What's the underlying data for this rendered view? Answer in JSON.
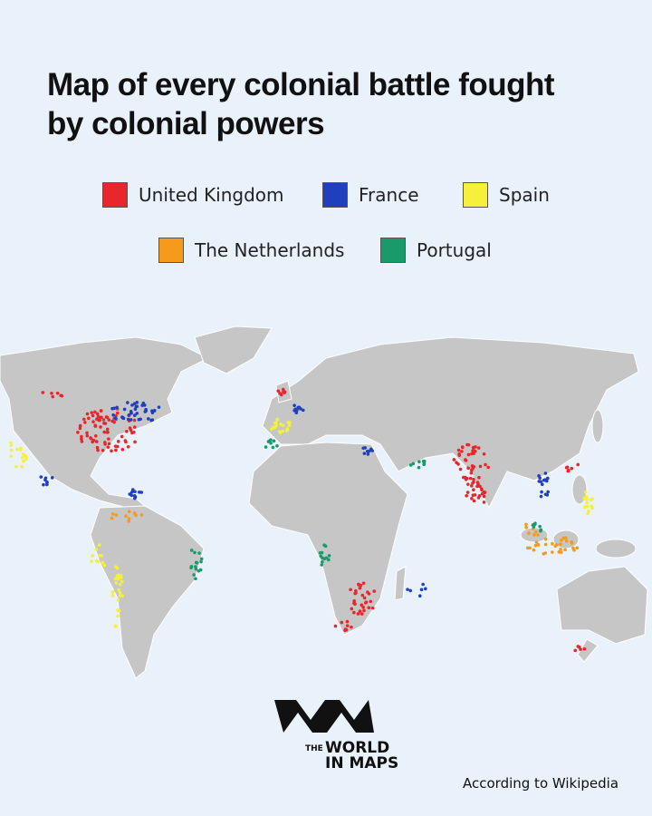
{
  "header": {
    "title_lines": [
      "Map of every colonial battle fought",
      "by colonial powers"
    ]
  },
  "legend": [
    {
      "name": "United Kingdom",
      "color": "#e8262b"
    },
    {
      "name": "France",
      "color": "#1f3fbf"
    },
    {
      "name": "Spain",
      "color": "#f7f03a"
    },
    {
      "name": "The Netherlands",
      "color": "#f59a1b"
    },
    {
      "name": "Portugal",
      "color": "#1a9a6a"
    }
  ],
  "logo": {
    "small": "THE",
    "line1": "WORLD",
    "line2": "IN MAPS"
  },
  "source": "According to Wikipedia"
}
